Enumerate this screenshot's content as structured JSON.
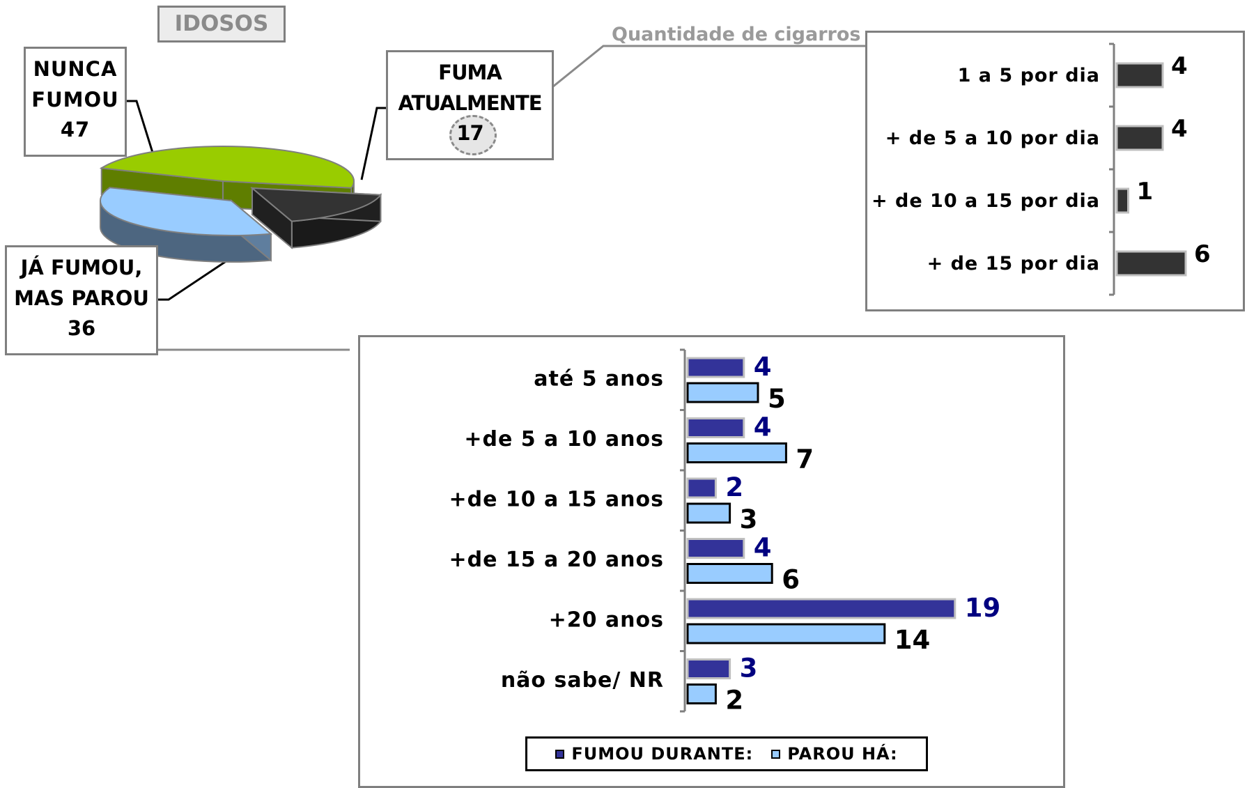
{
  "title": "IDOSOS",
  "pie": {
    "type": "pie",
    "slices": [
      {
        "line1": "NUNCA",
        "line2": "FUMOU",
        "value": 47,
        "color": "#99cc00"
      },
      {
        "line1": "FUMA",
        "line2": "ATUALMENTE",
        "value": 17,
        "color": "#333333"
      },
      {
        "line1": "JÁ FUMOU,",
        "line2": "MAS PAROU",
        "value": 36,
        "color": "#99ccff"
      }
    ]
  },
  "quantity_chart": {
    "label": "Quantidade de cigarros",
    "type": "bar",
    "categories": [
      "1 a 5 por dia",
      "+ de 5 a 10 por dia",
      "+ de 10 a 15 por dia",
      "+ de 15 por dia"
    ],
    "values": [
      4,
      4,
      1,
      6
    ],
    "color": "#333333"
  },
  "duration_chart": {
    "type": "bar",
    "categories": [
      "até 5 anos",
      "+de 5 a 10 anos",
      "+de 10 a 15 anos",
      "+de 15 a 20 anos",
      "+20 anos",
      "não sabe/ NR"
    ],
    "series": [
      {
        "name": "FUMOU DURANTE:",
        "values": [
          4,
          4,
          2,
          4,
          19,
          3
        ],
        "color": "#333399",
        "label_color": "#000080"
      },
      {
        "name": "PAROU HÁ:",
        "values": [
          5,
          7,
          3,
          6,
          14,
          2
        ],
        "color": "#99ccff",
        "label_color": "#000000"
      }
    ]
  }
}
